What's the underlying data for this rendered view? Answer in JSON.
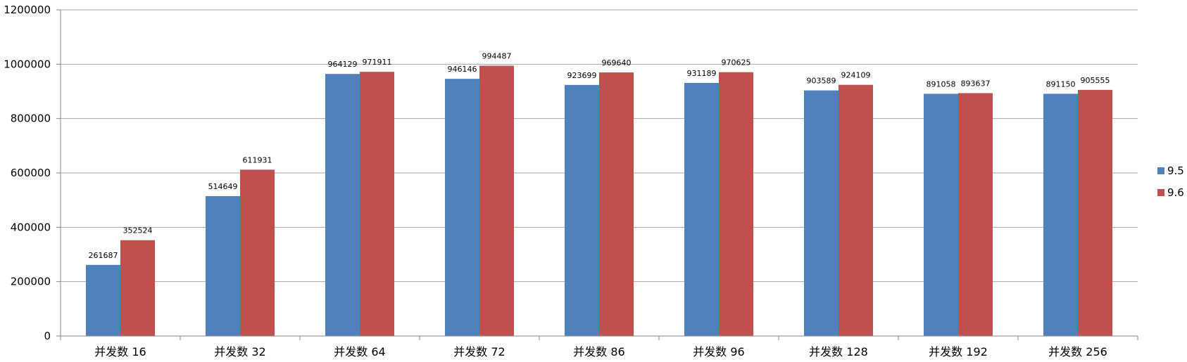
{
  "chart_data": {
    "type": "bar",
    "title": "",
    "xlabel": "",
    "ylabel": "",
    "categories": [
      "并发数 16",
      "并发数 32",
      "并发数 64",
      "并发数 72",
      "并发数 86",
      "并发数 96",
      "并发数 128",
      "并发数 192",
      "并发数 256"
    ],
    "series": [
      {
        "name": "9.5",
        "color": "#4F81BD",
        "values": [
          261687,
          514649,
          964129,
          946146,
          923699,
          931189,
          903589,
          891058,
          891150
        ]
      },
      {
        "name": "9.6",
        "color": "#C0504D",
        "values": [
          352524,
          611931,
          971911,
          994487,
          969640,
          970625,
          924109,
          893637,
          905555
        ]
      }
    ],
    "ylim": [
      0,
      1200000
    ],
    "yticks": [
      0,
      200000,
      400000,
      600000,
      800000,
      1000000,
      1200000
    ],
    "grid": true,
    "legend": "right"
  }
}
